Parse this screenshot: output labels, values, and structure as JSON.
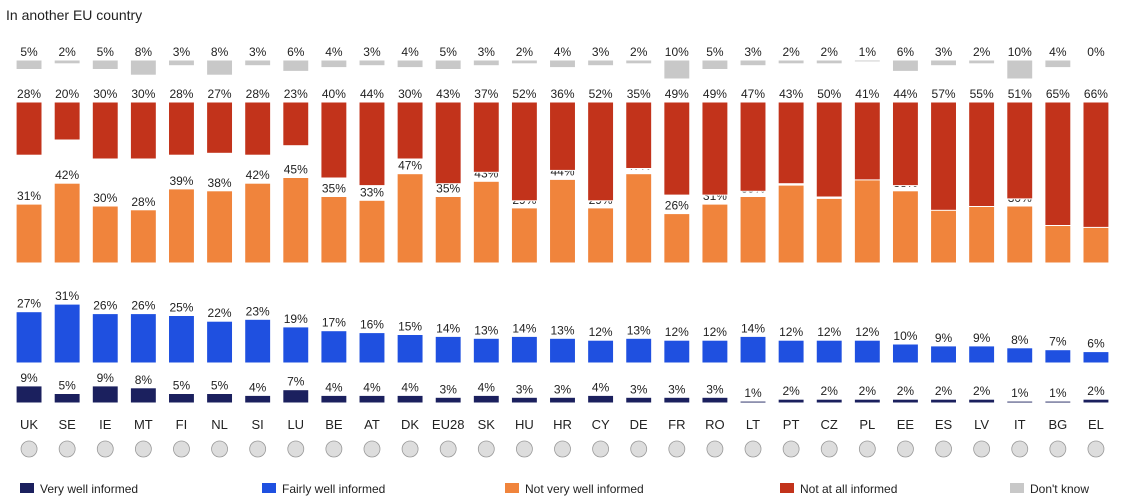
{
  "chart_data": {
    "type": "bar-rows",
    "title": "In another EU country",
    "categories": [
      "UK",
      "SE",
      "IE",
      "MT",
      "FI",
      "NL",
      "SI",
      "LU",
      "BE",
      "AT",
      "DK",
      "EU28",
      "SK",
      "HU",
      "HR",
      "CY",
      "DE",
      "FR",
      "RO",
      "LT",
      "PT",
      "CZ",
      "PL",
      "EE",
      "ES",
      "LV",
      "IT",
      "BG",
      "EL"
    ],
    "series": [
      {
        "name": "Very well informed",
        "color": "#1b205e",
        "values": [
          9,
          5,
          9,
          8,
          5,
          5,
          4,
          7,
          4,
          4,
          4,
          3,
          4,
          3,
          3,
          4,
          3,
          3,
          3,
          1,
          2,
          2,
          2,
          2,
          2,
          2,
          1,
          1,
          2
        ],
        "value_labels": [
          "9%",
          "5%",
          "9%",
          "8%",
          "5%",
          "5%",
          "4%",
          "7%",
          "4%",
          "4%",
          "4%",
          "3%",
          "4%",
          "3%",
          "3%",
          "4%",
          "3%",
          "3%",
          "3%",
          "1%",
          "2%",
          "2%",
          "2%",
          "2%",
          "2%",
          "2%",
          "1%",
          "1%",
          "2%"
        ]
      },
      {
        "name": "Fairly well informed",
        "color": "#1f50e0",
        "values": [
          27,
          31,
          26,
          26,
          25,
          22,
          23,
          19,
          17,
          16,
          15,
          14,
          13,
          14,
          13,
          12,
          13,
          12,
          12,
          14,
          12,
          12,
          12,
          10,
          9,
          9,
          8,
          7,
          6
        ],
        "value_labels": [
          "27%",
          "31%",
          "26%",
          "26%",
          "25%",
          "22%",
          "23%",
          "19%",
          "17%",
          "16%",
          "15%",
          "14%",
          "13%",
          "14%",
          "13%",
          "12%",
          "13%",
          "12%",
          "12%",
          "14%",
          "12%",
          "12%",
          "12%",
          "10%",
          "9%",
          "9%",
          "8%",
          "7%",
          "6%"
        ]
      },
      {
        "name": "Not very well informed",
        "color": "#f0843c",
        "values": [
          31,
          42,
          30,
          28,
          39,
          38,
          42,
          45,
          35,
          33,
          47,
          35,
          43,
          29,
          44,
          29,
          47,
          26,
          31,
          35,
          41,
          34,
          44,
          38,
          29,
          32,
          30,
          23,
          26
        ],
        "value_labels": [
          "31%",
          "42%",
          "30%",
          "28%",
          "39%",
          "38%",
          "42%",
          "45%",
          "35%",
          "33%",
          "47%",
          "35%",
          "43%",
          "29%",
          "44%",
          "29%",
          "47%",
          "26%",
          "31%",
          "35%",
          "41%",
          "34%",
          "44%",
          "38%",
          "29%",
          "32%",
          "30%",
          "23%",
          "26%"
        ]
      },
      {
        "name": "Not at all informed",
        "color": "#c2331b",
        "values": [
          28,
          20,
          30,
          30,
          28,
          27,
          28,
          23,
          40,
          44,
          30,
          43,
          37,
          52,
          36,
          52,
          35,
          49,
          49,
          47,
          43,
          50,
          41,
          44,
          57,
          55,
          51,
          65,
          66
        ],
        "value_labels": [
          "28%",
          "20%",
          "30%",
          "30%",
          "28%",
          "27%",
          "28%",
          "23%",
          "40%",
          "44%",
          "30%",
          "43%",
          "37%",
          "52%",
          "36%",
          "52%",
          "35%",
          "49%",
          "49%",
          "47%",
          "43%",
          "50%",
          "41%",
          "44%",
          "57%",
          "55%",
          "51%",
          "65%",
          "66%"
        ]
      },
      {
        "name": "Don't know",
        "color": "#c8c8c8",
        "values": [
          5,
          2,
          5,
          8,
          3,
          8,
          3,
          6,
          4,
          3,
          4,
          5,
          3,
          2,
          4,
          3,
          2,
          10,
          5,
          3,
          2,
          2,
          1,
          6,
          3,
          2,
          10,
          4,
          0
        ],
        "value_labels": [
          "5%",
          "2%",
          "5%",
          "8%",
          "3%",
          "8%",
          "3%",
          "6%",
          "4%",
          "3%",
          "4%",
          "5%",
          "3%",
          "2%",
          "4%",
          "3%",
          "2%",
          "10%",
          "5%",
          "3%",
          "2%",
          "2%",
          "1%",
          "6%",
          "3%",
          "2%",
          "10%",
          "4%",
          "0%"
        ]
      }
    ]
  }
}
